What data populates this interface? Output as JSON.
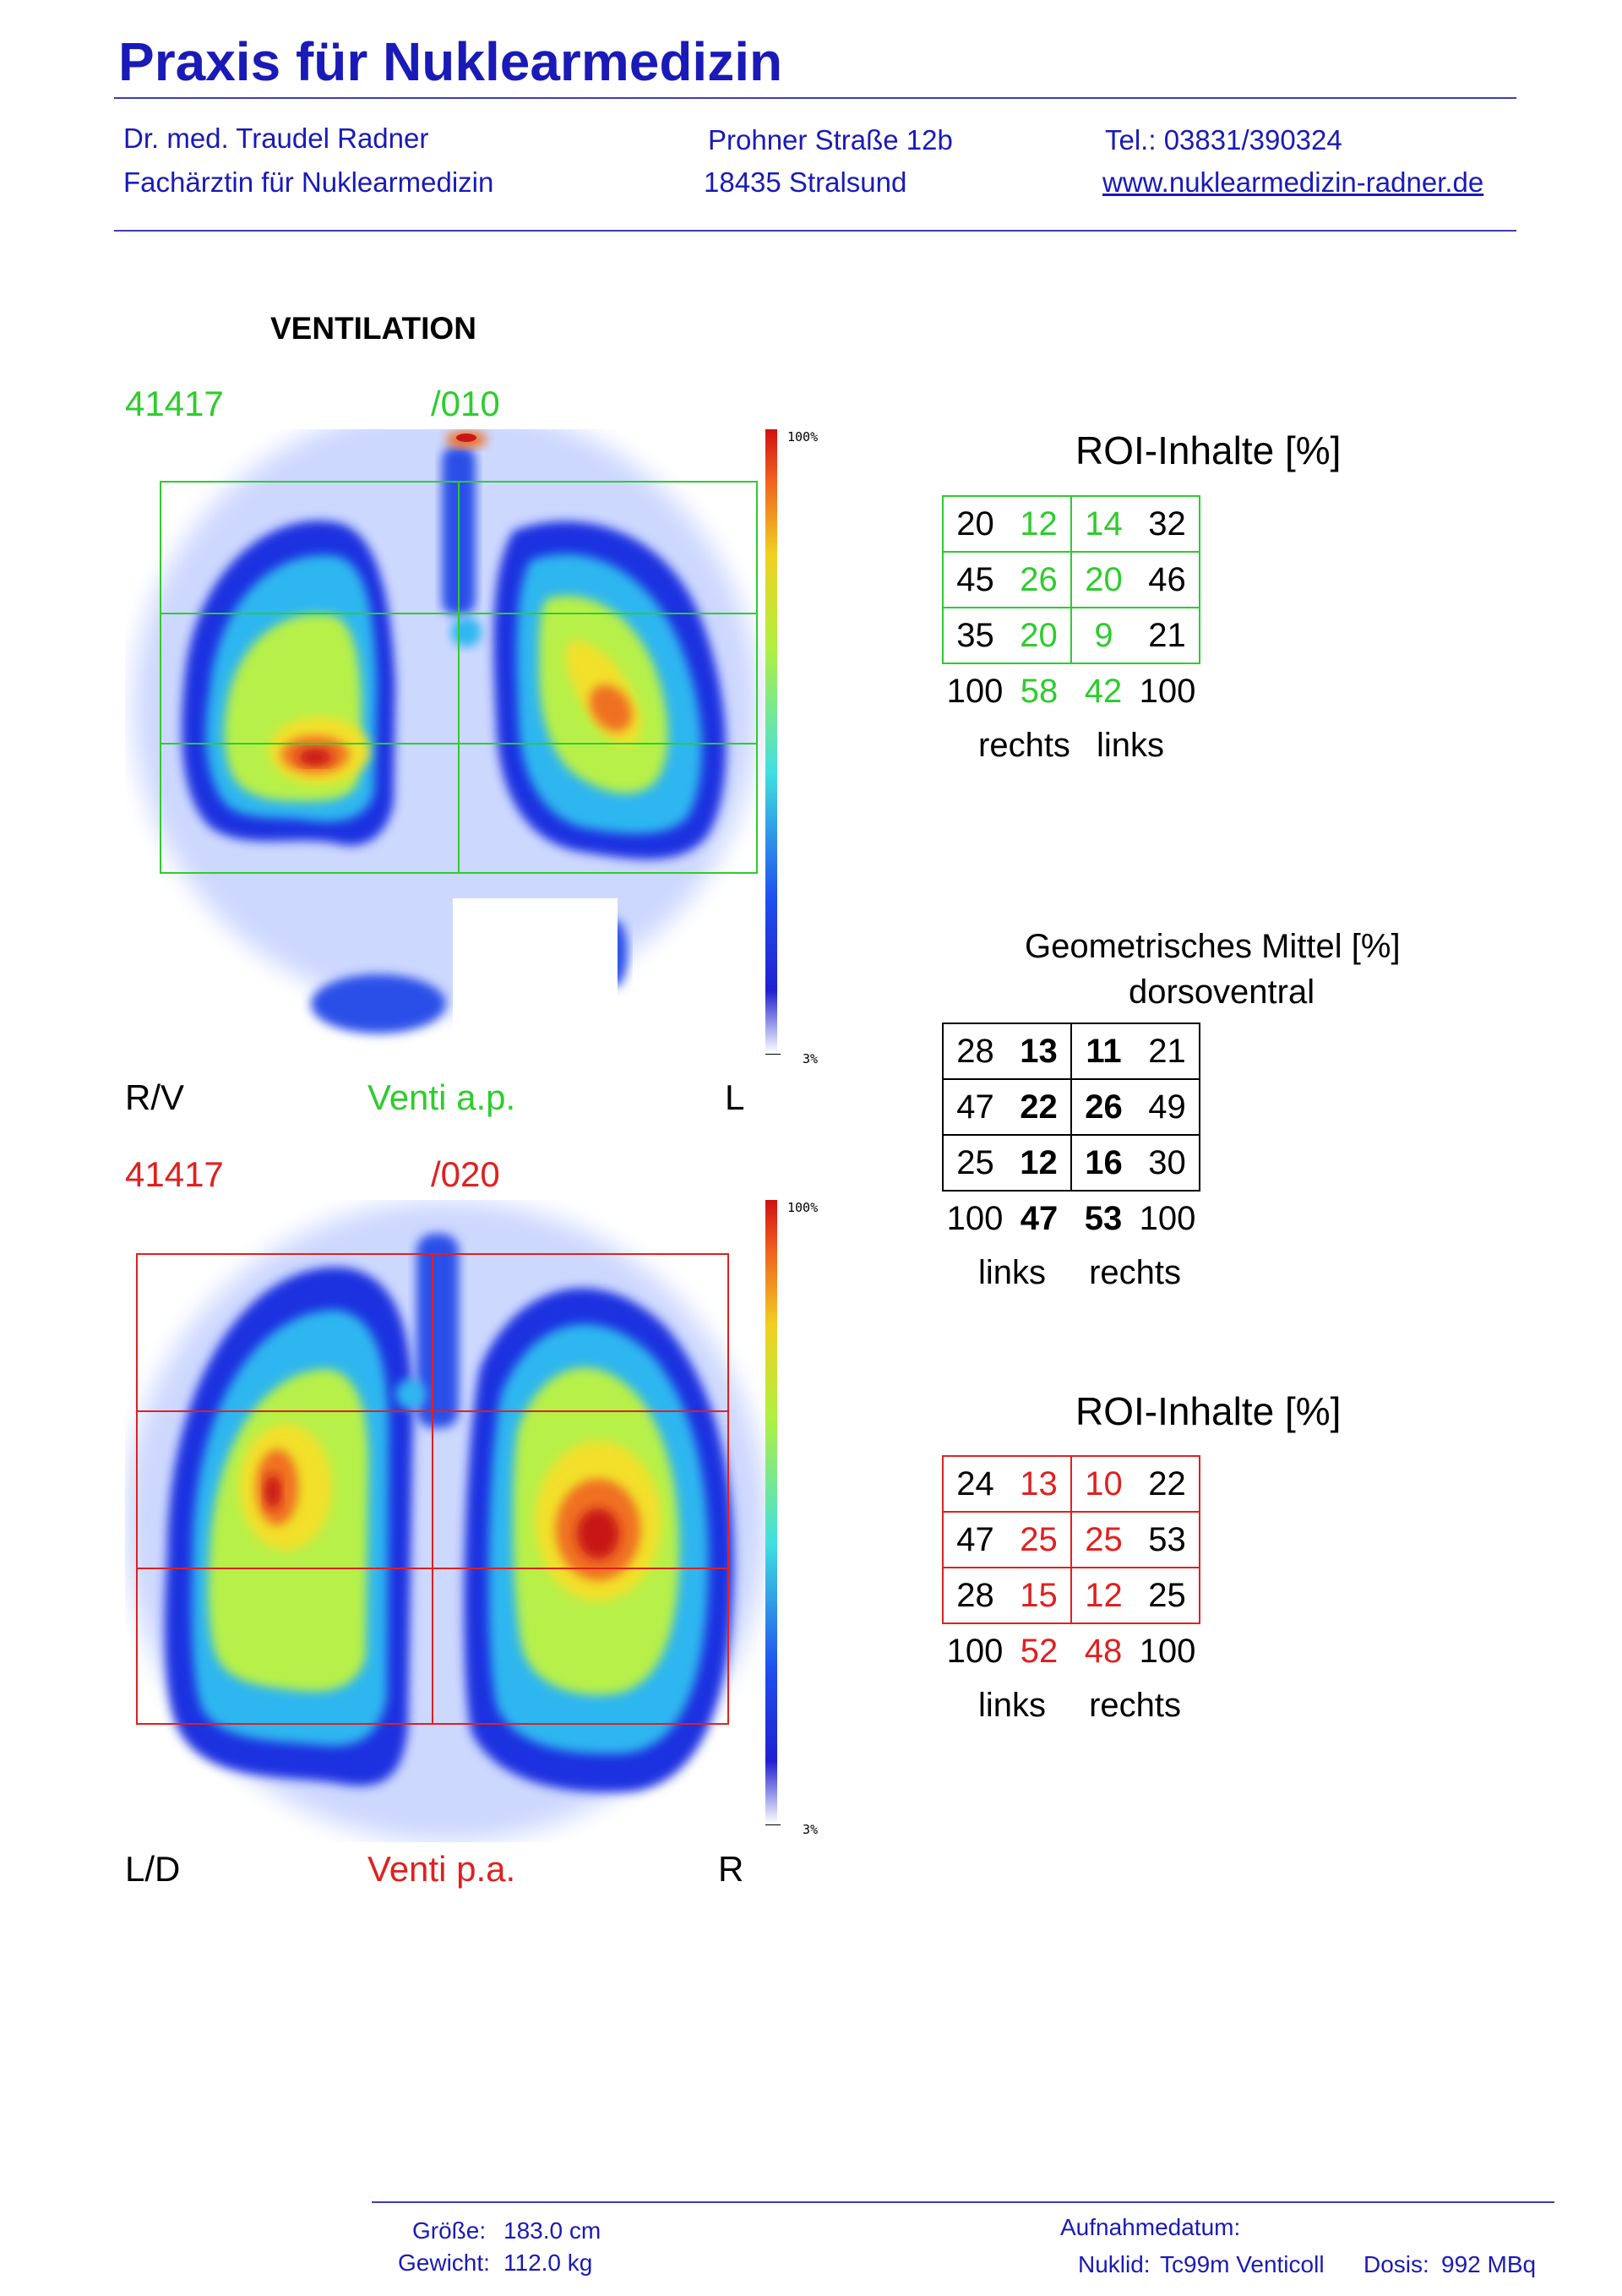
{
  "header": {
    "title": "Praxis für Nuklearmedizin",
    "doctor": "Dr. med. Traudel Radner",
    "specialty": "Fachärztin für Nuklearmedizin",
    "street": "Prohner Straße 12b",
    "city": "18435 Stralsund",
    "phone": "Tel.: 03831/390324",
    "website": "www.nuklearmedizin-radner.de"
  },
  "section_title": "VENTILATION",
  "scan_ap": {
    "id": "41417",
    "frame": "/010",
    "left_label": "R/V",
    "view_label": "Venti a.p.",
    "right_label": "L",
    "scale_max": "100%",
    "scale_min": "3%"
  },
  "scan_pa": {
    "id": "41417",
    "frame": "/020",
    "left_label": "L/D",
    "view_label": "Venti p.a.",
    "right_label": "R",
    "scale_max": "100%",
    "scale_min": "3%"
  },
  "roi_ap": {
    "title": "ROI-Inhalte [%]",
    "rows": [
      [
        "20",
        "12",
        "14",
        "32"
      ],
      [
        "45",
        "26",
        "20",
        "46"
      ],
      [
        "35",
        "20",
        "9",
        "21"
      ]
    ],
    "totals": [
      "100",
      "58",
      "42",
      "100"
    ],
    "side_left": "rechts",
    "side_right": "links",
    "color": "#2ecc2e"
  },
  "geo_mean": {
    "title": "Geometrisches Mittel [%]",
    "subtitle": "dorsoventral",
    "rows": [
      [
        "28",
        "13",
        "11",
        "21"
      ],
      [
        "47",
        "22",
        "26",
        "49"
      ],
      [
        "25",
        "12",
        "16",
        "30"
      ]
    ],
    "totals": [
      "100",
      "47",
      "53",
      "100"
    ],
    "side_left": "links",
    "side_right": "rechts"
  },
  "roi_pa": {
    "title": "ROI-Inhalte [%]",
    "rows": [
      [
        "24",
        "13",
        "10",
        "22"
      ],
      [
        "47",
        "25",
        "25",
        "53"
      ],
      [
        "28",
        "15",
        "12",
        "25"
      ]
    ],
    "totals": [
      "100",
      "52",
      "48",
      "100"
    ],
    "side_left": "links",
    "side_right": "rechts",
    "color": "#e02020"
  },
  "footer": {
    "height_label": "Größe:",
    "height_value": "183.0 cm",
    "weight_label": "Gewicht:",
    "weight_value": "112.0 kg",
    "date_label": "Aufnahmedatum:",
    "nuclide_label": "Nuklid:",
    "nuclide_value": "Tc99m Venticoll",
    "dose_label": "Dosis:",
    "dose_value": "992 MBq"
  }
}
